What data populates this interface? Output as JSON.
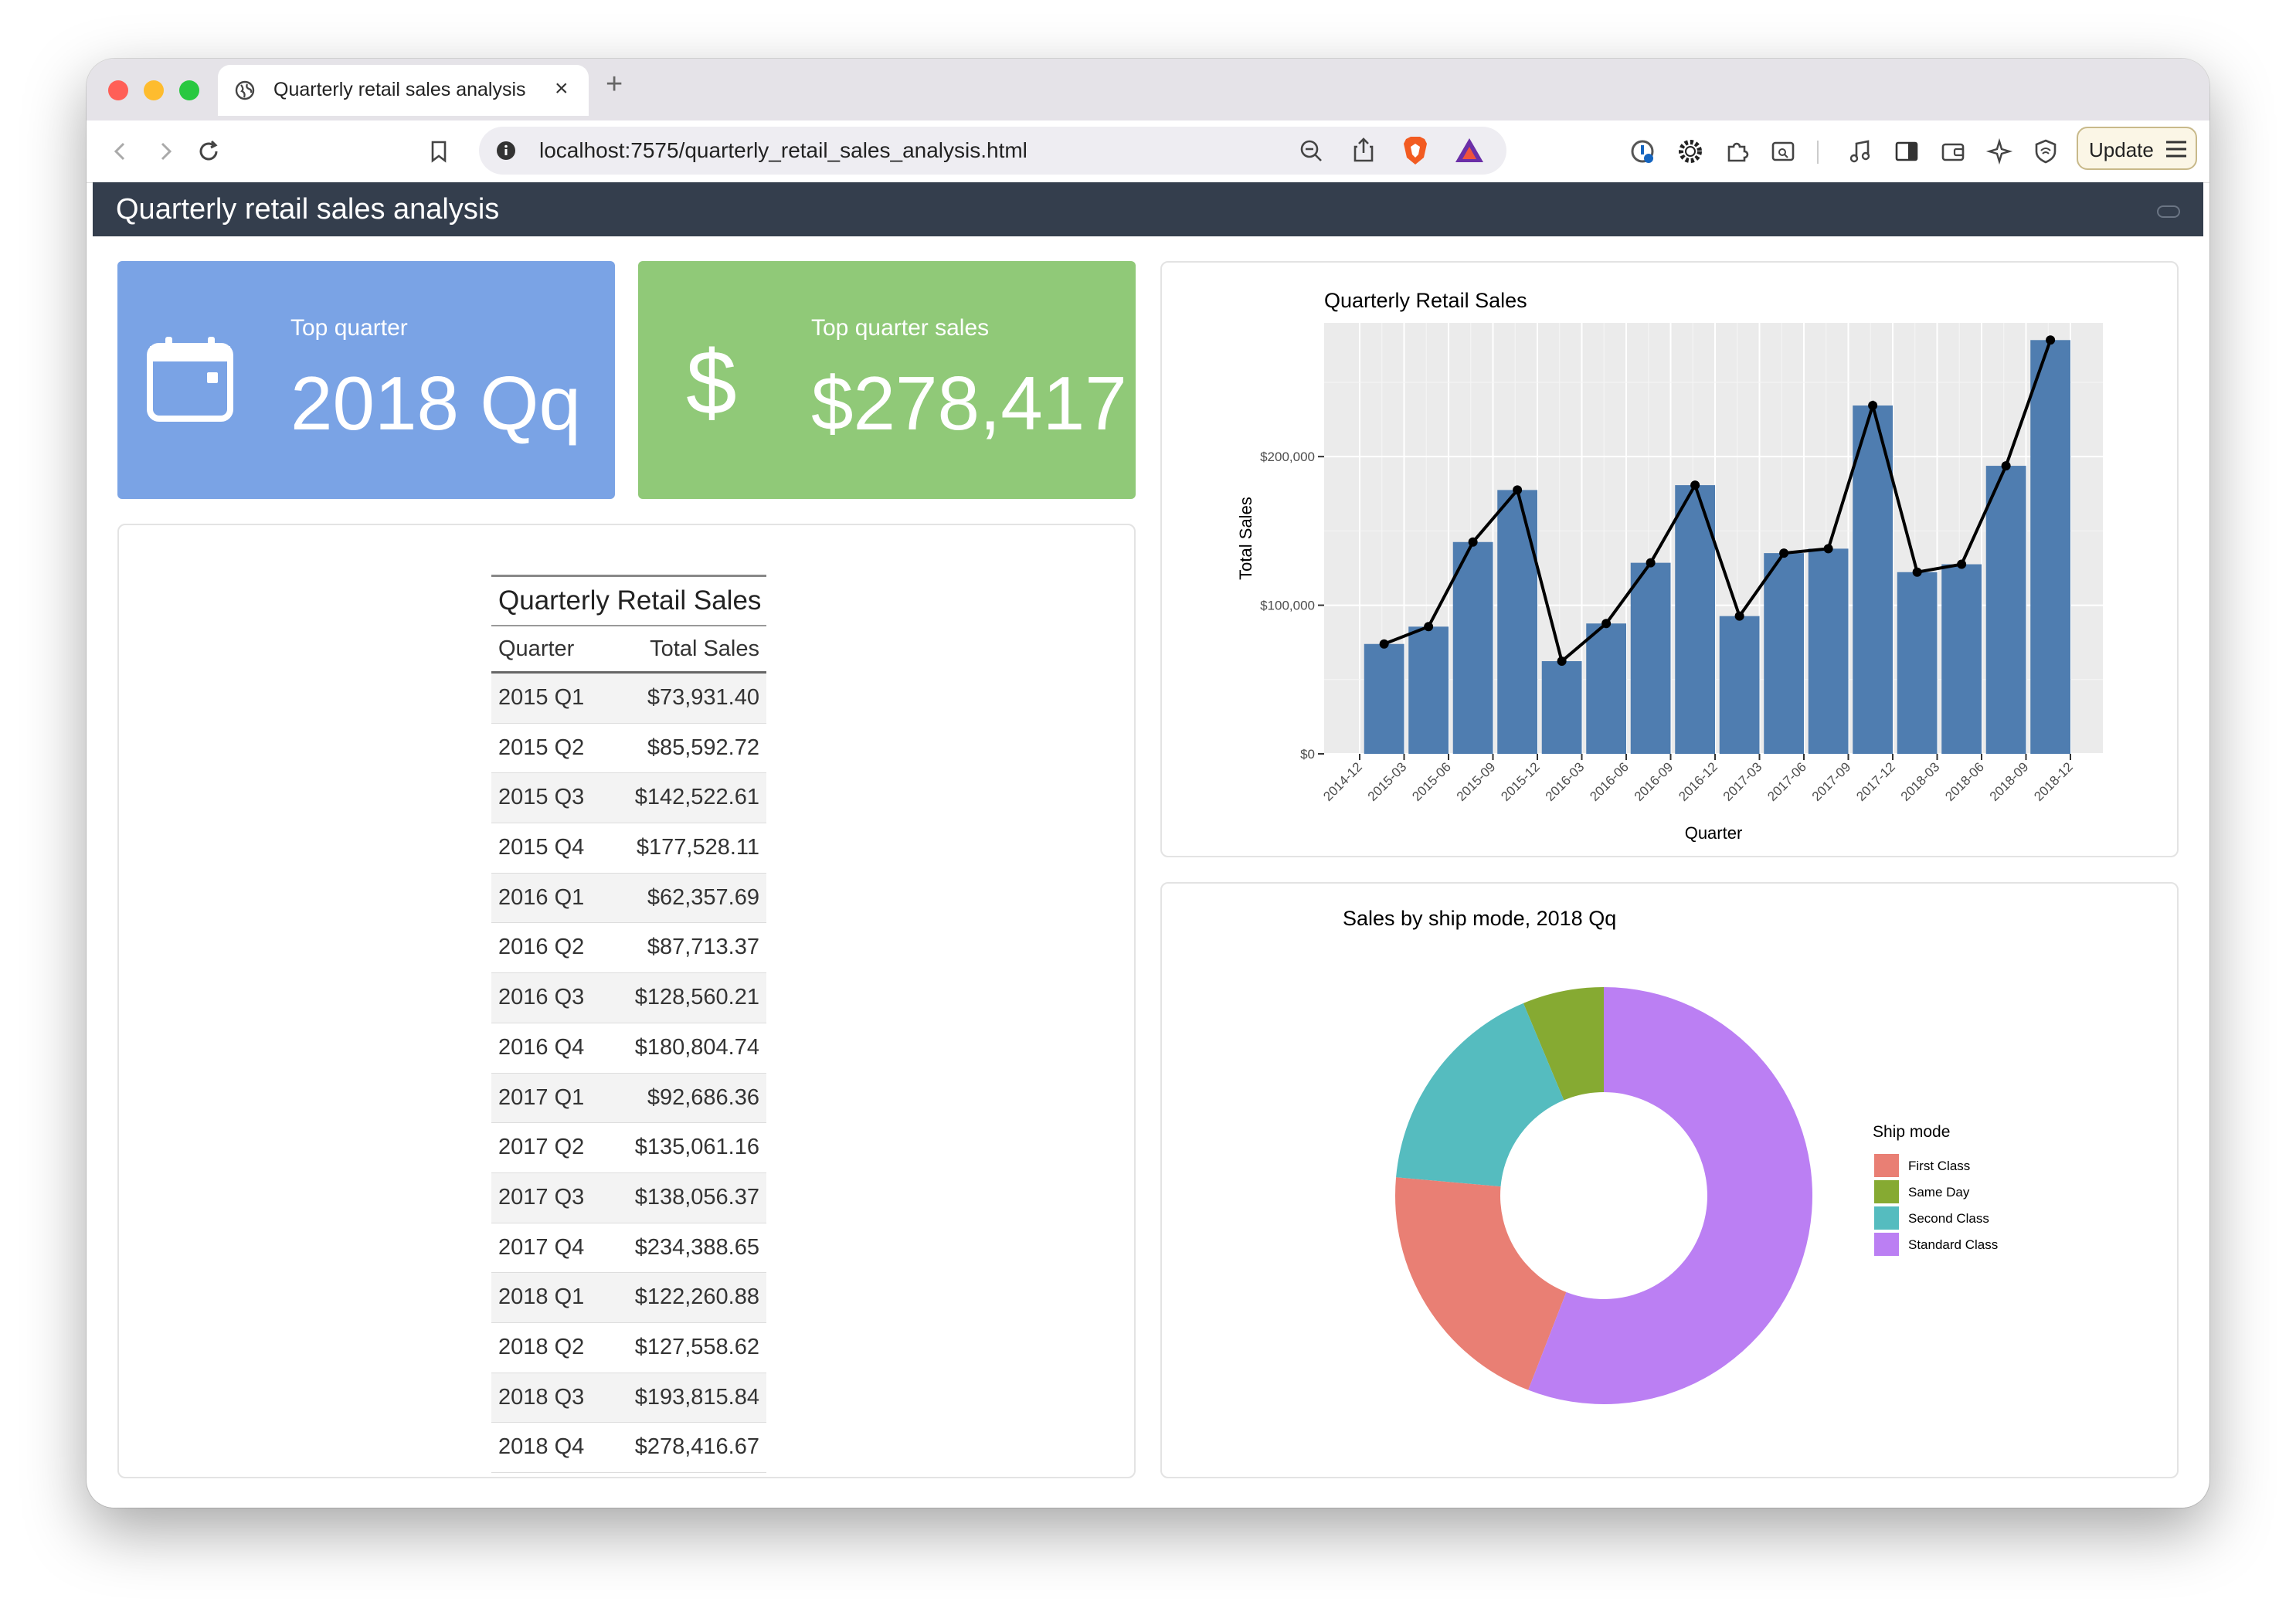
{
  "browser": {
    "tab_title": "Quarterly retail sales analysis",
    "tab_close": "×",
    "new_tab": "+",
    "url": "localhost:7575/quarterly_retail_sales_analysis.html",
    "update_label": "Update"
  },
  "dashboard": {
    "title": "Quarterly retail sales analysis",
    "value_boxes": [
      {
        "label": "Top quarter",
        "value": "2018 Qq",
        "color": "#7aa3e5",
        "icon": "calendar-icon"
      },
      {
        "label": "Top quarter sales",
        "value": "$278,417",
        "color": "#90c978",
        "icon": "dollar-icon",
        "icon_glyph": "$"
      }
    ]
  },
  "table": {
    "caption": "Quarterly Retail Sales",
    "columns": [
      "Quarter",
      "Total Sales"
    ],
    "rows": [
      [
        "2015 Q1",
        "$73,931.40"
      ],
      [
        "2015 Q2",
        "$85,592.72"
      ],
      [
        "2015 Q3",
        "$142,522.61"
      ],
      [
        "2015 Q4",
        "$177,528.11"
      ],
      [
        "2016 Q1",
        "$62,357.69"
      ],
      [
        "2016 Q2",
        "$87,713.37"
      ],
      [
        "2016 Q3",
        "$128,560.21"
      ],
      [
        "2016 Q4",
        "$180,804.74"
      ],
      [
        "2017 Q1",
        "$92,686.36"
      ],
      [
        "2017 Q2",
        "$135,061.16"
      ],
      [
        "2017 Q3",
        "$138,056.37"
      ],
      [
        "2017 Q4",
        "$234,388.65"
      ],
      [
        "2018 Q1",
        "$122,260.88"
      ],
      [
        "2018 Q2",
        "$127,558.62"
      ],
      [
        "2018 Q3",
        "$193,815.84"
      ],
      [
        "2018 Q4",
        "$278,416.67"
      ]
    ]
  },
  "chart_data": [
    {
      "type": "bar",
      "title": "Quarterly Retail Sales",
      "xlabel": "Quarter",
      "ylabel": "Total Sales",
      "x_tick_labels": [
        "2014-12",
        "2015-03",
        "2015-06",
        "2015-09",
        "2015-12",
        "2016-03",
        "2016-06",
        "2016-09",
        "2016-12",
        "2017-03",
        "2017-06",
        "2017-09",
        "2017-12",
        "2018-03",
        "2018-06",
        "2018-09",
        "2018-12"
      ],
      "y_ticks": [
        0,
        100000,
        200000
      ],
      "y_tick_labels": [
        "$0",
        "$100,000",
        "$200,000"
      ],
      "categories": [
        "2015-01",
        "2015-04",
        "2015-07",
        "2015-10",
        "2016-01",
        "2016-04",
        "2016-07",
        "2016-10",
        "2017-01",
        "2017-04",
        "2017-07",
        "2017-10",
        "2018-01",
        "2018-04",
        "2018-07",
        "2018-10"
      ],
      "values": [
        73931.4,
        85592.72,
        142522.61,
        177528.11,
        62357.69,
        87713.37,
        128560.21,
        180804.74,
        92686.36,
        135061.16,
        138056.37,
        234388.65,
        122260.88,
        127558.62,
        193815.84,
        278416.67
      ],
      "ylim": [
        0,
        290000
      ],
      "bar_color": "#4f7db0",
      "line_color": "#000000",
      "grid": true,
      "overlay": "line with points"
    },
    {
      "type": "pie",
      "style": "donut",
      "title": "Sales by ship mode, 2018 Qq",
      "legend_title": "Ship mode",
      "legend_position": "right",
      "labels": [
        "First Class",
        "Same Day",
        "Second Class",
        "Standard Class"
      ],
      "values": [
        20.5,
        6.3,
        17.3,
        55.9
      ],
      "colors": [
        "#e97f74",
        "#86aa32",
        "#55bcbf",
        "#bb7ff3"
      ]
    }
  ]
}
